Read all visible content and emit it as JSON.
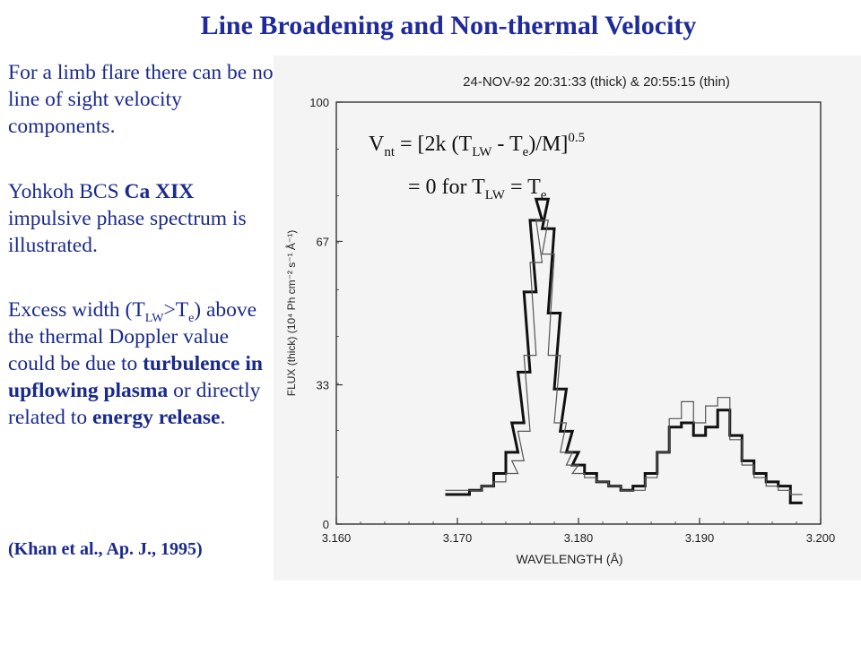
{
  "slide": {
    "title": "Line Broadening and Non-thermal Velocity"
  },
  "left_text": {
    "p1": "For a limb flare there can be no line of sight velocity components.",
    "p2_a": "Yohkoh BCS ",
    "p2_b": "Ca XIX",
    "p2_c": " impulsive phase spectrum is illustrated.",
    "p3_a": "Excess width (T",
    "p3_sub1": "LW",
    "p3_b": ">T",
    "p3_sub2": "e",
    "p3_c": ") above the thermal Doppler value could be due to ",
    "p3_bold1": "turbulence in upflowing plasma",
    "p3_d": " or directly related to ",
    "p3_bold2": "energy release",
    "p3_e": ".",
    "ref": "(Khan et al., Ap. J., 1995)"
  },
  "formula": {
    "line1_v": "V",
    "line1_nt": "nt",
    "line1_a": " = [2k (T",
    "line1_lw": "LW",
    "line1_b": " - T",
    "line1_e": "e",
    "line1_c": ")/M]",
    "line1_exp": "0.5",
    "line2_a": "= 0 for T",
    "line2_lw": "LW",
    "line2_b": " = T",
    "line2_e": "e"
  },
  "chart_data": {
    "type": "line",
    "title": "24-NOV-92  20:31:33 (thick) & 20:55:15 (thin)",
    "xlabel": "WAVELENGTH (Å)",
    "ylabel": "FLUX (thick) (10⁴ Ph cm⁻² s⁻¹ Å⁻¹)",
    "xlim": [
      3.16,
      3.2
    ],
    "ylim": [
      0,
      100
    ],
    "xticks": [
      "3.160",
      "3.170",
      "3.180",
      "3.190",
      "3.200"
    ],
    "yticks": [
      "0",
      "33",
      "67",
      "100"
    ],
    "x": [
      3.1695,
      3.1705,
      3.1715,
      3.1725,
      3.1735,
      3.1745,
      3.175,
      3.1755,
      3.176,
      3.1765,
      3.177,
      3.1775,
      3.178,
      3.1785,
      3.179,
      3.1795,
      3.18,
      3.181,
      3.182,
      3.183,
      3.184,
      3.185,
      3.186,
      3.187,
      3.188,
      3.189,
      3.19,
      3.191,
      3.192,
      3.193,
      3.194,
      3.195,
      3.196,
      3.197,
      3.198
    ],
    "series": [
      {
        "name": "thick",
        "values": [
          7,
          7,
          8,
          9,
          12,
          17,
          24,
          36,
          55,
          72,
          77,
          70,
          50,
          32,
          22,
          17,
          14,
          12,
          10,
          9,
          8,
          9,
          12,
          17,
          23,
          24,
          21,
          23,
          27,
          21,
          15,
          12,
          10,
          9,
          5
        ]
      },
      {
        "name": "thin",
        "values": [
          8,
          8,
          8,
          9,
          10,
          12,
          15,
          22,
          40,
          62,
          72,
          64,
          40,
          24,
          17,
          14,
          12,
          11,
          10,
          9,
          8,
          8,
          11,
          17,
          25,
          29,
          24,
          28,
          30,
          20,
          14,
          11,
          9,
          8,
          7
        ]
      }
    ]
  }
}
